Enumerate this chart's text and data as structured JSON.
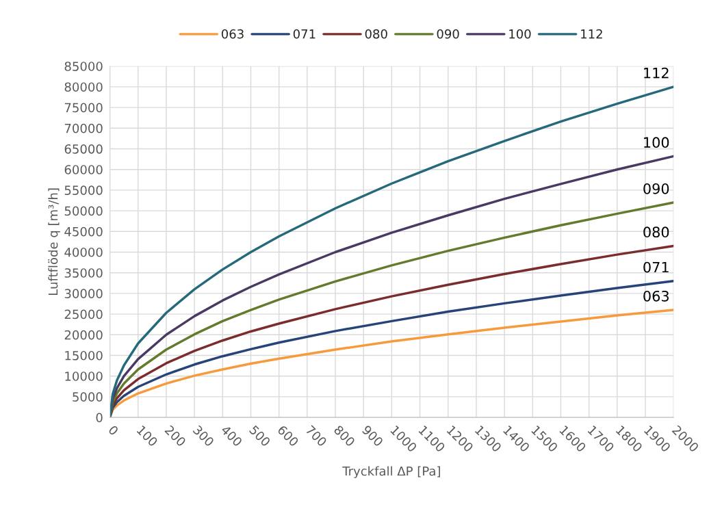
{
  "chart_data": {
    "type": "line",
    "xlabel": "Tryckfall ΔP [Pa]",
    "ylabel": "Luftflöde q [m³/h]",
    "x": [
      0,
      10,
      25,
      50,
      100,
      200,
      300,
      400,
      500,
      600,
      800,
      1000,
      1200,
      1400,
      1600,
      1800,
      2000
    ],
    "series": [
      {
        "name": "063",
        "color": "#f79a3c",
        "values": [
          0,
          1840,
          2900,
          4100,
          5800,
          8200,
          10100,
          11600,
          13000,
          14200,
          16400,
          18400,
          20100,
          21700,
          23200,
          24700,
          26000
        ]
      },
      {
        "name": "071",
        "color": "#264478",
        "values": [
          0,
          2330,
          3690,
          5220,
          7380,
          10400,
          12800,
          14800,
          16500,
          18100,
          20900,
          23300,
          25600,
          27600,
          29500,
          31300,
          33000
        ]
      },
      {
        "name": "080",
        "color": "#7b2c2c",
        "values": [
          0,
          2930,
          4640,
          6560,
          9280,
          13100,
          16100,
          18600,
          20800,
          22700,
          26200,
          29300,
          32100,
          34700,
          37100,
          39400,
          41500
        ]
      },
      {
        "name": "090",
        "color": "#647a2c",
        "values": [
          0,
          3680,
          5800,
          8200,
          11600,
          16400,
          20100,
          23300,
          26000,
          28500,
          32900,
          36800,
          40300,
          43500,
          46500,
          49300,
          52000
        ]
      },
      {
        "name": "100",
        "color": "#4a3a63",
        "values": [
          0,
          4470,
          7070,
          10000,
          14100,
          20000,
          24500,
          28300,
          31600,
          34600,
          40000,
          44700,
          48900,
          52900,
          56500,
          60000,
          63200
        ]
      },
      {
        "name": "112",
        "color": "#26697a",
        "values": [
          0,
          5660,
          8950,
          12600,
          17900,
          25300,
          31000,
          35800,
          40000,
          43800,
          50600,
          56600,
          62000,
          66900,
          71600,
          75900,
          80000
        ]
      }
    ],
    "xlim": [
      0,
      2000
    ],
    "xticks": [
      0,
      100,
      200,
      300,
      400,
      500,
      600,
      700,
      800,
      900,
      1000,
      1100,
      1200,
      1300,
      1400,
      1500,
      1600,
      1700,
      1800,
      1900,
      2000
    ],
    "ylim": [
      0,
      85000
    ],
    "yticks": [
      0,
      5000,
      10000,
      15000,
      20000,
      25000,
      30000,
      35000,
      40000,
      45000,
      50000,
      55000,
      60000,
      65000,
      70000,
      75000,
      80000,
      85000
    ],
    "grid": true,
    "legend": "top",
    "marker": "none",
    "line_style": "solid"
  }
}
